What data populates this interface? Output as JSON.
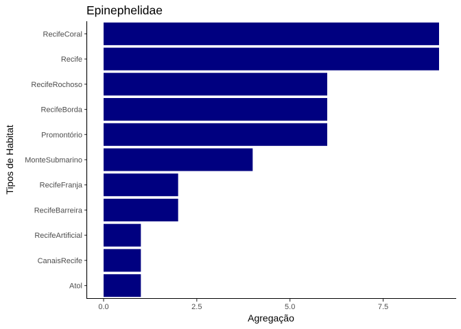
{
  "chart_data": {
    "type": "bar",
    "orientation": "horizontal",
    "title": "Epinephelidae",
    "xlabel": "Agregação",
    "ylabel": "Tipos de Habitat",
    "xlim": [
      0,
      9
    ],
    "x_ticks": [
      0,
      2.5,
      5,
      7.5
    ],
    "x_tick_labels": [
      "0.0",
      "2.5",
      "5.0",
      "7.5"
    ],
    "categories": [
      "RecifeCoral",
      "Recife",
      "RecifeRochoso",
      "RecifeBorda",
      "Promontório",
      "MonteSubmarino",
      "RecifeFranja",
      "RecifeBarreira",
      "RecifeArtificial",
      "CanaisRecife",
      "Atol"
    ],
    "values": [
      9,
      9,
      6,
      6,
      6,
      4,
      2,
      2,
      1,
      1,
      1
    ],
    "bar_color": "#000080",
    "grid": false,
    "legend": "none"
  }
}
